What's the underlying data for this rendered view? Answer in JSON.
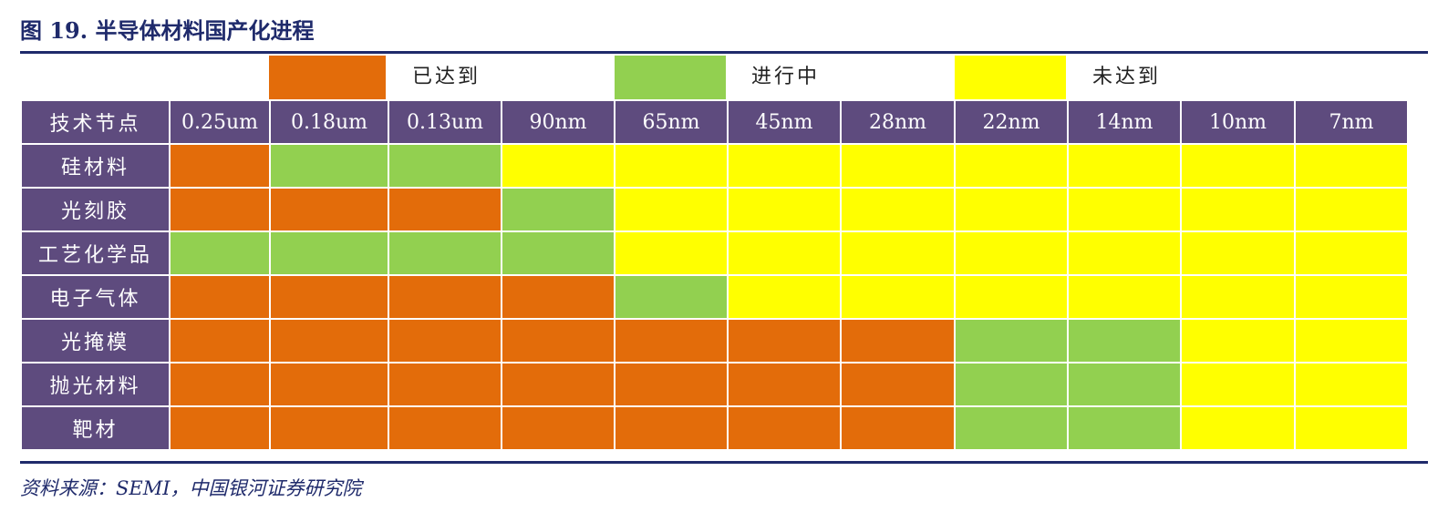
{
  "title": "图 19. 半导体材料国产化进程",
  "legend": {
    "reached": {
      "label": "已达到",
      "color": "#e36c0a"
    },
    "in_progress": {
      "label": "进行中",
      "color": "#92d050"
    },
    "not_reached": {
      "label": "未达到",
      "color": "#ffff00"
    }
  },
  "table": {
    "corner": "技术节点",
    "nodes": [
      "0.25um",
      "0.18um",
      "0.13um",
      "90nm",
      "65nm",
      "45nm",
      "28nm",
      "22nm",
      "14nm",
      "10nm",
      "7nm"
    ],
    "rows": [
      {
        "label": "硅材料",
        "status": [
          "reached",
          "in_progress",
          "in_progress",
          "not_reached",
          "not_reached",
          "not_reached",
          "not_reached",
          "not_reached",
          "not_reached",
          "not_reached",
          "not_reached"
        ]
      },
      {
        "label": "光刻胶",
        "status": [
          "reached",
          "reached",
          "reached",
          "in_progress",
          "not_reached",
          "not_reached",
          "not_reached",
          "not_reached",
          "not_reached",
          "not_reached",
          "not_reached"
        ]
      },
      {
        "label": "工艺化学品",
        "status": [
          "in_progress",
          "in_progress",
          "in_progress",
          "in_progress",
          "not_reached",
          "not_reached",
          "not_reached",
          "not_reached",
          "not_reached",
          "not_reached",
          "not_reached"
        ]
      },
      {
        "label": "电子气体",
        "status": [
          "reached",
          "reached",
          "reached",
          "reached",
          "in_progress",
          "not_reached",
          "not_reached",
          "not_reached",
          "not_reached",
          "not_reached",
          "not_reached"
        ]
      },
      {
        "label": "光掩模",
        "status": [
          "reached",
          "reached",
          "reached",
          "reached",
          "reached",
          "reached",
          "reached",
          "in_progress",
          "in_progress",
          "not_reached",
          "not_reached"
        ]
      },
      {
        "label": "抛光材料",
        "status": [
          "reached",
          "reached",
          "reached",
          "reached",
          "reached",
          "reached",
          "reached",
          "in_progress",
          "in_progress",
          "not_reached",
          "not_reached"
        ]
      },
      {
        "label": "靶材",
        "status": [
          "reached",
          "reached",
          "reached",
          "reached",
          "reached",
          "reached",
          "reached",
          "in_progress",
          "in_progress",
          "not_reached",
          "not_reached"
        ]
      }
    ]
  },
  "source": "资料来源：SEMI，中国银河证券研究院"
}
